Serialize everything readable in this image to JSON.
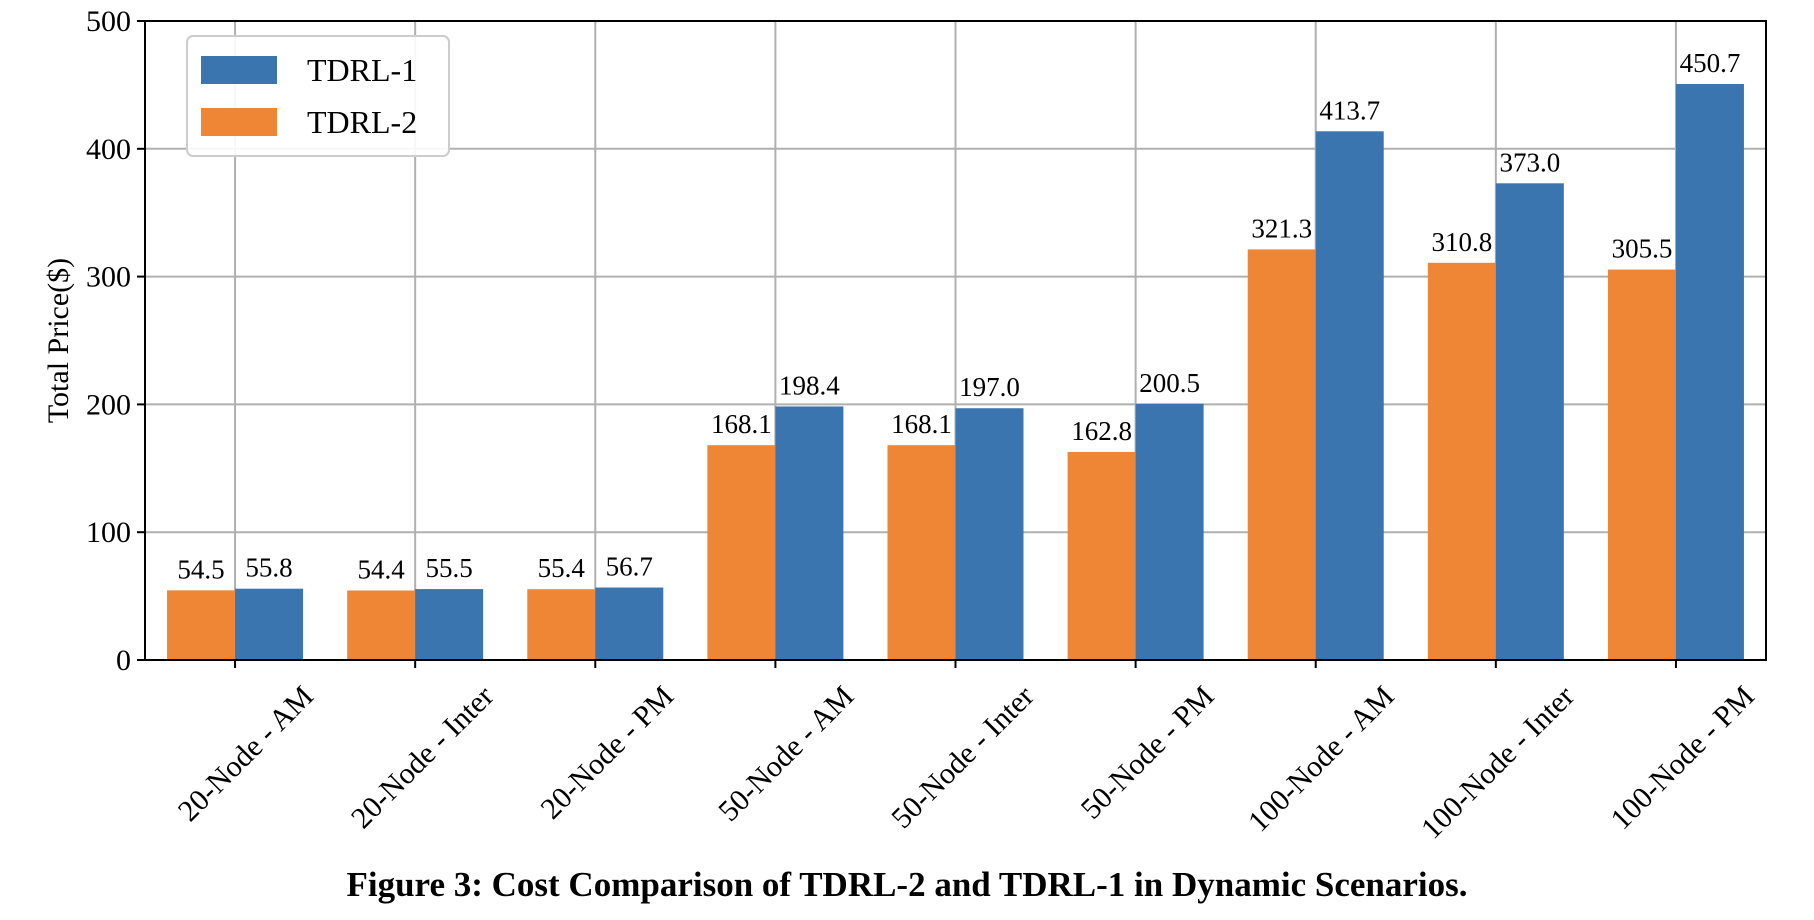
{
  "chart_data": {
    "type": "bar",
    "categories": [
      "20-Node - AM",
      "20-Node - Inter",
      "20-Node - PM",
      "50-Node - AM",
      "50-Node - Inter",
      "50-Node - PM",
      "100-Node - AM",
      "100-Node - Inter",
      "100-Node - PM"
    ],
    "series": [
      {
        "name": "TDRL-2",
        "color": "#ef8636",
        "values": [
          54.5,
          54.4,
          55.4,
          168.1,
          168.1,
          162.8,
          321.3,
          310.8,
          305.5
        ]
      },
      {
        "name": "TDRL-1",
        "color": "#3b75af",
        "values": [
          55.8,
          55.5,
          56.7,
          198.4,
          197.0,
          200.5,
          413.7,
          373.0,
          450.7
        ]
      }
    ],
    "legend_order": [
      "TDRL-1",
      "TDRL-2"
    ],
    "ylabel": "Total Price($)",
    "ylim": [
      0,
      500
    ],
    "yticks": [
      0,
      100,
      200,
      300,
      400,
      500
    ],
    "grid": true,
    "legend_position": "top-left"
  },
  "caption": "Figure 3: Cost Comparison of TDRL-2 and TDRL-1 in Dynamic Scenarios."
}
